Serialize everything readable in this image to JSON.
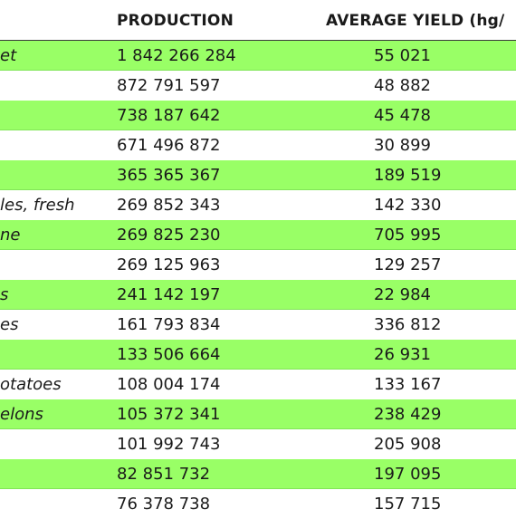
{
  "table": {
    "headers": [
      "",
      "PRODUCTION",
      "AVERAGE YIELD (hg/"
    ],
    "rows": [
      {
        "name": "et",
        "production": "1 842 266 284",
        "yield": "55 021"
      },
      {
        "name": "",
        "production": "872 791 597",
        "yield": "48 882"
      },
      {
        "name": "",
        "production": "738 187 642",
        "yield": "45 478"
      },
      {
        "name": "",
        "production": "671 496 872",
        "yield": "30 899"
      },
      {
        "name": "",
        "production": "365 365 367",
        "yield": "189 519"
      },
      {
        "name": "les, fresh",
        "production": "269 852 343",
        "yield": "142 330"
      },
      {
        "name": "ne",
        "production": "269 825 230",
        "yield": "705 995"
      },
      {
        "name": "",
        "production": "269 125 963",
        "yield": "129 257"
      },
      {
        "name": "s",
        "production": "241 142 197",
        "yield": "22 984"
      },
      {
        "name": "es",
        "production": "161 793 834",
        "yield": "336 812"
      },
      {
        "name": "",
        "production": "133 506 664",
        "yield": "26 931"
      },
      {
        "name": "otatoes",
        "production": "108 004 174",
        "yield": "133 167"
      },
      {
        "name": "elons",
        "production": "105 372 341",
        "yield": "238 429"
      },
      {
        "name": "",
        "production": "101 992 743",
        "yield": "205 908"
      },
      {
        "name": "",
        "production": "82 851 732",
        "yield": "197 095"
      },
      {
        "name": "",
        "production": "76 378 738",
        "yield": "157 715"
      }
    ]
  },
  "colors": {
    "band": "#99ff66",
    "plain": "#ffffff"
  }
}
